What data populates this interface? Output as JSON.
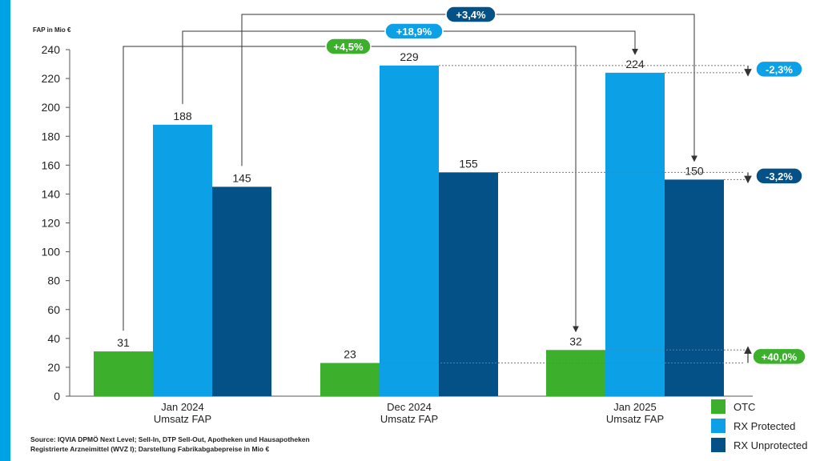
{
  "colors": {
    "accent": "#00a2e6",
    "otc": "#3cb02c",
    "rx_protected": "#0ca1e6",
    "rx_unprotected": "#035187",
    "badge_green": "#3cb02c",
    "badge_light": "#0ca1e6",
    "badge_dark": "#035187"
  },
  "chart_data": {
    "type": "bar",
    "ylabel": "FAP in Mio €",
    "ylim": [
      0,
      240
    ],
    "yticks": [
      0,
      20,
      40,
      60,
      80,
      100,
      120,
      140,
      160,
      180,
      200,
      220,
      240
    ],
    "categories": [
      [
        "Jan 2024",
        "Umsatz FAP"
      ],
      [
        "Dec 2024",
        "Umsatz FAP"
      ],
      [
        "Jan 2025",
        "Umsatz FAP"
      ]
    ],
    "series": [
      {
        "name": "OTC",
        "values": [
          31,
          23,
          32
        ]
      },
      {
        "name": "RX Protected",
        "values": [
          188,
          229,
          224
        ]
      },
      {
        "name": "RX Unprotected",
        "values": [
          145,
          155,
          150
        ]
      }
    ],
    "data_labels": [
      [
        "31",
        "188",
        "145"
      ],
      [
        "23",
        "229",
        "155"
      ],
      [
        "32",
        "224",
        "150"
      ]
    ],
    "yoy_annotations": [
      {
        "label": "+4,5%",
        "series": 0
      },
      {
        "label": "+18,9%",
        "series": 1
      },
      {
        "label": "+3,4%",
        "series": 2
      }
    ],
    "mom_annotations": [
      {
        "label": "-2,3%",
        "series": 1
      },
      {
        "label": "-3,2%",
        "series": 2
      },
      {
        "label": "+40,0%",
        "series": 0
      }
    ],
    "legend_position": "bottom-right"
  },
  "legend": [
    {
      "label": "OTC"
    },
    {
      "label": "RX Protected"
    },
    {
      "label": "RX Unprotected"
    }
  ],
  "source": {
    "line1": "Source: IQVIA DPMÖ Next Level; Sell-In, DTP Sell-Out, Apotheken und Hausapotheken",
    "line2": "Registrierte Arzneimittel (WVZ I); Darstellung Fabrikabgabepreise in Mio €"
  }
}
